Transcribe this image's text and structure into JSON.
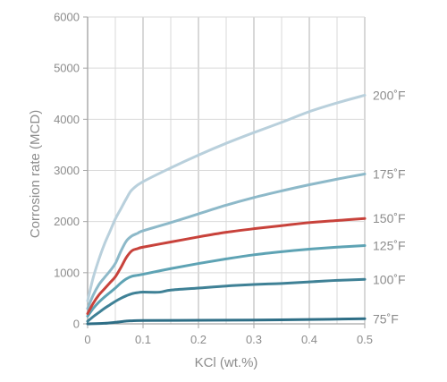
{
  "chart_data": {
    "type": "line",
    "xlabel": "KCl (wt.%)",
    "ylabel": "Corrosion rate (MCD)",
    "xlim": [
      0,
      0.5
    ],
    "ylim": [
      0,
      6000
    ],
    "xticks": [
      "0",
      "0.1",
      "0.2",
      "0.3",
      "0.4",
      "0.5"
    ],
    "yticks": [
      "0",
      "1000",
      "2000",
      "3000",
      "4000",
      "5000",
      "6000"
    ],
    "grid": true,
    "legend": "right-inline",
    "series": [
      {
        "name": "200˚F",
        "color": "#b9d0dc",
        "x": [
          0,
          0.01,
          0.02,
          0.03,
          0.04,
          0.05,
          0.06,
          0.07,
          0.08,
          0.1,
          0.15,
          0.2,
          0.25,
          0.3,
          0.35,
          0.4,
          0.45,
          0.5
        ],
        "y": [
          450,
          900,
          1250,
          1550,
          1800,
          2050,
          2250,
          2450,
          2620,
          2780,
          3050,
          3300,
          3530,
          3740,
          3940,
          4150,
          4320,
          4470
        ]
      },
      {
        "name": "175˚F",
        "color": "#8db9c9",
        "x": [
          0,
          0.01,
          0.02,
          0.03,
          0.04,
          0.05,
          0.06,
          0.07,
          0.08,
          0.09,
          0.1,
          0.15,
          0.2,
          0.25,
          0.3,
          0.35,
          0.4,
          0.45,
          0.5
        ],
        "y": [
          300,
          560,
          760,
          900,
          1030,
          1180,
          1420,
          1620,
          1720,
          1770,
          1820,
          1980,
          2150,
          2320,
          2470,
          2600,
          2720,
          2830,
          2930
        ]
      },
      {
        "name": "150˚F",
        "color": "#c8423b",
        "x": [
          0,
          0.01,
          0.02,
          0.03,
          0.04,
          0.05,
          0.06,
          0.07,
          0.08,
          0.09,
          0.1,
          0.15,
          0.2,
          0.25,
          0.3,
          0.35,
          0.4,
          0.45,
          0.5
        ],
        "y": [
          200,
          400,
          560,
          680,
          800,
          920,
          1100,
          1300,
          1430,
          1470,
          1500,
          1600,
          1700,
          1790,
          1860,
          1920,
          1980,
          2020,
          2060
        ]
      },
      {
        "name": "125˚F",
        "color": "#5ea3b4",
        "x": [
          0,
          0.01,
          0.02,
          0.03,
          0.04,
          0.05,
          0.06,
          0.07,
          0.08,
          0.09,
          0.1,
          0.15,
          0.2,
          0.25,
          0.3,
          0.35,
          0.4,
          0.45,
          0.5
        ],
        "y": [
          150,
          300,
          420,
          520,
          610,
          700,
          800,
          880,
          930,
          950,
          970,
          1080,
          1180,
          1270,
          1350,
          1410,
          1460,
          1500,
          1530
        ]
      },
      {
        "name": "100˚F",
        "color": "#3f8196",
        "x": [
          0,
          0.01,
          0.02,
          0.03,
          0.04,
          0.05,
          0.06,
          0.07,
          0.08,
          0.09,
          0.1,
          0.13,
          0.15,
          0.2,
          0.25,
          0.3,
          0.35,
          0.4,
          0.45,
          0.5
        ],
        "y": [
          50,
          140,
          220,
          300,
          370,
          440,
          500,
          550,
          590,
          610,
          620,
          620,
          660,
          700,
          740,
          770,
          790,
          820,
          850,
          870
        ]
      },
      {
        "name": "75˚F",
        "color": "#2e6e86",
        "x": [
          0,
          0.03,
          0.05,
          0.07,
          0.08,
          0.1,
          0.2,
          0.3,
          0.4,
          0.5
        ],
        "y": [
          0,
          10,
          30,
          55,
          60,
          65,
          70,
          75,
          85,
          100
        ]
      }
    ]
  }
}
